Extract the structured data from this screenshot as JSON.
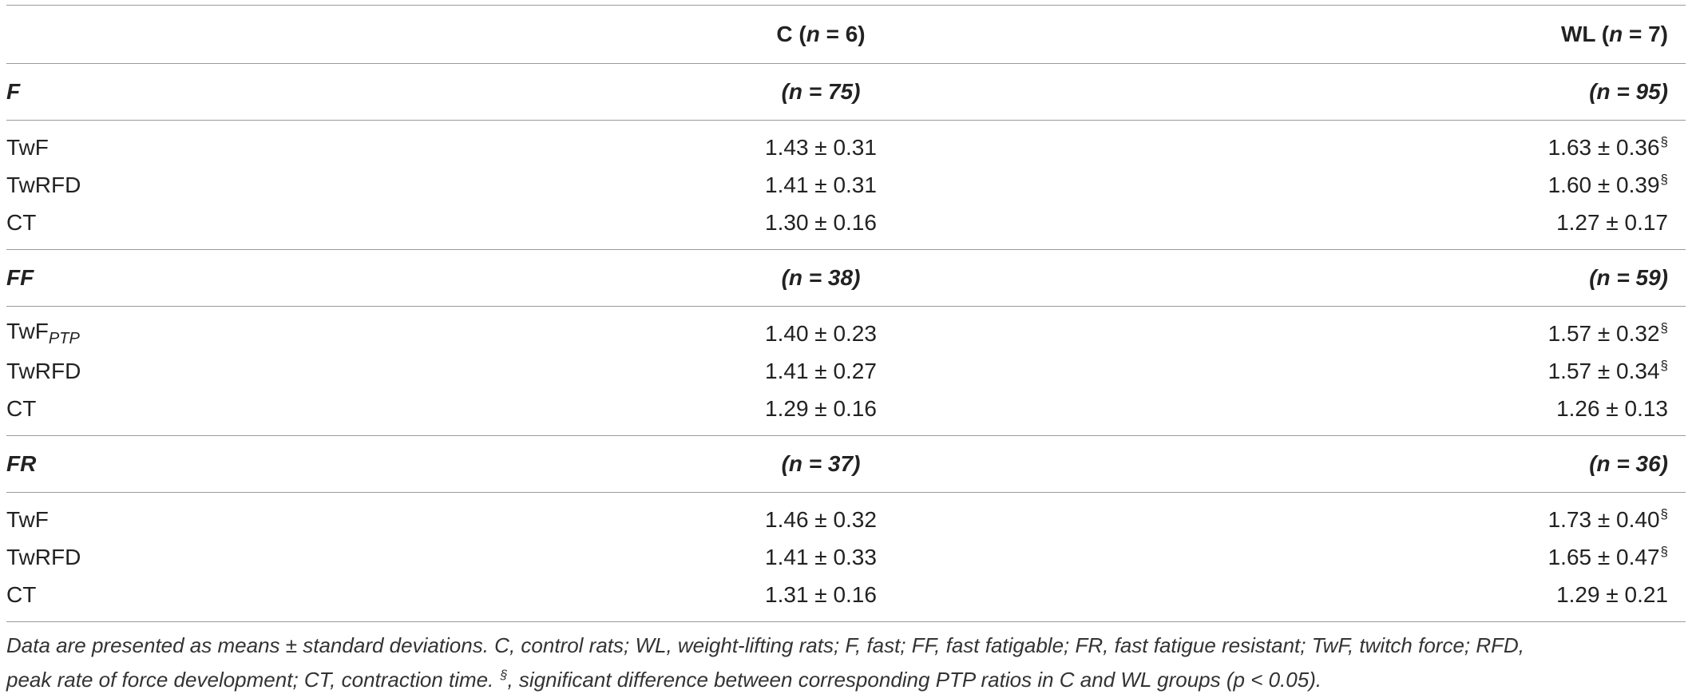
{
  "header": {
    "col_c_prefix": "C (",
    "col_c_n": "n",
    "col_c_suffix": " = 6)",
    "col_wl_prefix": "WL (",
    "col_wl_n": "n",
    "col_wl_suffix": " = 7)"
  },
  "groups": [
    {
      "label": "F",
      "c_n": "(n = 75)",
      "wl_n": "(n = 95)",
      "rows": [
        {
          "label": "TwF",
          "label_sub": "",
          "c": "1.43 ± 0.31",
          "wl": "1.63 ± 0.36",
          "wl_mark": "§"
        },
        {
          "label": "TwRFD",
          "label_sub": "",
          "c": "1.41 ± 0.31",
          "wl": "1.60 ± 0.39",
          "wl_mark": "§"
        },
        {
          "label": "CT",
          "label_sub": "",
          "c": "1.30 ± 0.16",
          "wl": "1.27 ± 0.17",
          "wl_mark": ""
        }
      ]
    },
    {
      "label": "FF",
      "c_n": "(n = 38)",
      "wl_n": "(n = 59)",
      "rows": [
        {
          "label": "TwF",
          "label_sub": "PTP",
          "c": "1.40 ± 0.23",
          "wl": "1.57 ± 0.32",
          "wl_mark": "§"
        },
        {
          "label": "TwRFD",
          "label_sub": "",
          "c": "1.41 ± 0.27",
          "wl": "1.57 ± 0.34",
          "wl_mark": "§"
        },
        {
          "label": "CT",
          "label_sub": "",
          "c": "1.29 ± 0.16",
          "wl": "1.26 ± 0.13",
          "wl_mark": ""
        }
      ]
    },
    {
      "label": "FR",
      "c_n": "(n = 37)",
      "wl_n": "(n = 36)",
      "rows": [
        {
          "label": "TwF",
          "label_sub": "",
          "c": "1.46 ± 0.32",
          "wl": "1.73 ± 0.40",
          "wl_mark": "§"
        },
        {
          "label": "TwRFD",
          "label_sub": "",
          "c": "1.41 ± 0.33",
          "wl": "1.65 ± 0.47",
          "wl_mark": "§"
        },
        {
          "label": "CT",
          "label_sub": "",
          "c": "1.31 ± 0.16",
          "wl": "1.29 ± 0.21",
          "wl_mark": ""
        }
      ]
    }
  ],
  "caption": {
    "line1": "Data are presented as means ± standard deviations. C, control rats; WL, weight-lifting rats; F, fast; FF, fast fatigable; FR, fast fatigue resistant; TwF, twitch force; RFD,",
    "line2_pre": "peak rate of force development; CT, contraction time. ",
    "line2_mark": "§",
    "line2_post": ", significant difference between corresponding PTP ratios in C and WL groups (p < 0.05)."
  }
}
